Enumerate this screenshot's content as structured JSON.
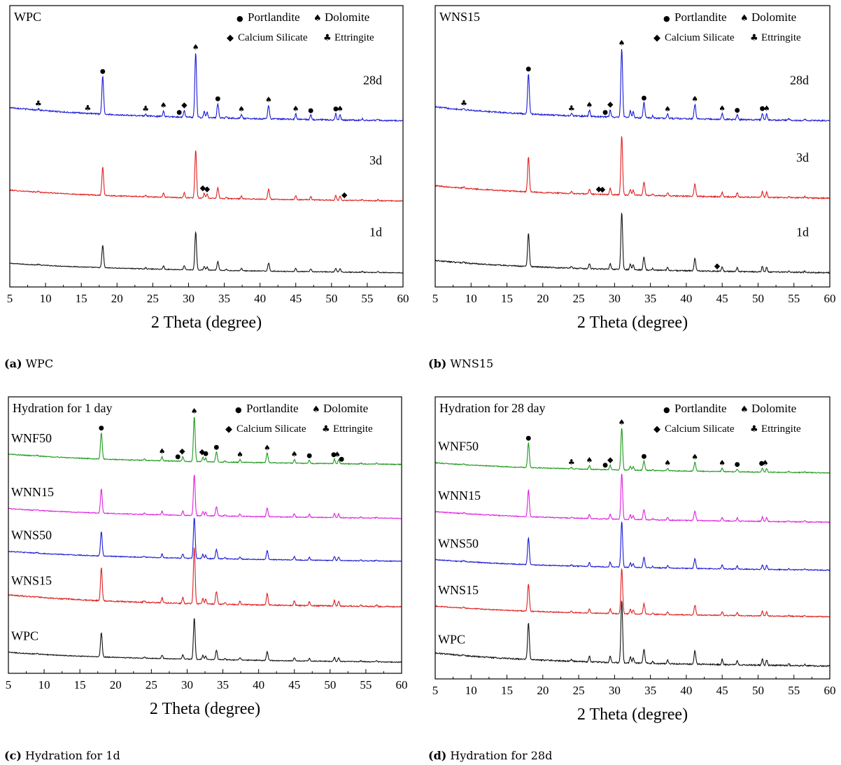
{
  "figure": {
    "colors": {
      "black": "#111111",
      "red": "#e02020",
      "blue": "#1a1ad6",
      "green": "#1e9a1e",
      "magenta": "#e020e0"
    },
    "legend": {
      "portlandite": "Portlandite",
      "dolomite": "Dolomite",
      "calcium_silicate": "Calcium Silicate",
      "ettringite": "Ettringite"
    },
    "symbols": {
      "portlandite": "●",
      "dolomite": "♠",
      "calcium_silicate": "◆",
      "ettringite": "♣"
    },
    "peaks": [
      {
        "two_theta": 18.0,
        "h": 1.0,
        "w": 0.12
      },
      {
        "two_theta": 31.0,
        "h": 1.7,
        "w": 0.12
      },
      {
        "two_theta": 34.1,
        "h": 0.38,
        "w": 0.12
      },
      {
        "two_theta": 41.2,
        "h": 0.36,
        "w": 0.12
      },
      {
        "two_theta": 26.5,
        "h": 0.15,
        "w": 0.1
      },
      {
        "two_theta": 29.4,
        "h": 0.18,
        "w": 0.1
      },
      {
        "two_theta": 32.2,
        "h": 0.17,
        "w": 0.1
      },
      {
        "two_theta": 32.6,
        "h": 0.14,
        "w": 0.1
      },
      {
        "two_theta": 37.4,
        "h": 0.1,
        "w": 0.1
      },
      {
        "two_theta": 45.0,
        "h": 0.14,
        "w": 0.1
      },
      {
        "two_theta": 47.1,
        "h": 0.12,
        "w": 0.1
      },
      {
        "two_theta": 50.6,
        "h": 0.17,
        "w": 0.1
      },
      {
        "two_theta": 51.2,
        "h": 0.15,
        "w": 0.1
      },
      {
        "two_theta": 35.3,
        "h": 0.05,
        "w": 0.1
      },
      {
        "two_theta": 24.0,
        "h": 0.05,
        "w": 0.1
      },
      {
        "two_theta": 9.0,
        "h": 0.03,
        "w": 0.12
      },
      {
        "two_theta": 54.3,
        "h": 0.04,
        "w": 0.1
      },
      {
        "two_theta": 56.5,
        "h": 0.04,
        "w": 0.1
      }
    ]
  },
  "chart_data": [
    {
      "id": "a",
      "type": "line",
      "title": "WPC",
      "caption_letter": "(a)",
      "caption_text": "WPC",
      "xlabel": "2 Theta (degree)",
      "ylabel": "",
      "xlim": [
        5,
        60
      ],
      "xticks": [
        5,
        10,
        15,
        20,
        25,
        30,
        35,
        40,
        45,
        50,
        55,
        60
      ],
      "series": [
        {
          "name": "1d",
          "label": "1d",
          "color": "#111111",
          "baseline": 0.5,
          "scale": 1.0
        },
        {
          "name": "3d",
          "label": "3d",
          "color": "#e02020",
          "baseline": 3.05,
          "scale": 1.26
        },
        {
          "name": "28d",
          "label": "28d",
          "color": "#1a1ad6",
          "baseline": 5.9,
          "scale": 1.7
        }
      ],
      "markers": [
        {
          "type": "ettringite",
          "x": 9.0,
          "series": "28d"
        },
        {
          "type": "ettringite",
          "x": 15.9,
          "series": "28d"
        },
        {
          "type": "portlandite",
          "x": 18.0,
          "series": "28d"
        },
        {
          "type": "ettringite",
          "x": 24.0,
          "series": "28d"
        },
        {
          "type": "dolomite",
          "x": 26.5,
          "series": "28d"
        },
        {
          "type": "portlandite",
          "x": 28.7,
          "series": "28d"
        },
        {
          "type": "calcium_silicate",
          "x": 29.4,
          "series": "28d"
        },
        {
          "type": "dolomite",
          "x": 31.0,
          "series": "28d"
        },
        {
          "type": "portlandite",
          "x": 34.1,
          "series": "28d"
        },
        {
          "type": "dolomite",
          "x": 37.4,
          "series": "28d"
        },
        {
          "type": "dolomite",
          "x": 41.2,
          "series": "28d"
        },
        {
          "type": "dolomite",
          "x": 45.0,
          "series": "28d"
        },
        {
          "type": "portlandite",
          "x": 47.1,
          "series": "28d"
        },
        {
          "type": "portlandite",
          "x": 50.6,
          "series": "28d"
        },
        {
          "type": "dolomite",
          "x": 51.2,
          "series": "28d"
        },
        {
          "type": "calcium_silicate",
          "x": 32.0,
          "series": "3d"
        },
        {
          "type": "calcium_silicate",
          "x": 32.6,
          "series": "3d"
        },
        {
          "type": "calcium_silicate",
          "x": 51.8,
          "series": "3d"
        }
      ]
    },
    {
      "id": "b",
      "type": "line",
      "title": "WNS15",
      "caption_letter": "(b)",
      "caption_text": "WNS15",
      "xlabel": "2 Theta (degree)",
      "ylabel": "",
      "xlim": [
        5,
        60
      ],
      "xticks": [
        5,
        10,
        15,
        20,
        25,
        30,
        35,
        40,
        45,
        50,
        55,
        60
      ],
      "series": [
        {
          "name": "1d",
          "label": "1d",
          "color": "#111111",
          "baseline": 0.5,
          "scale": 1.5
        },
        {
          "name": "3d",
          "label": "3d",
          "color": "#e02020",
          "baseline": 3.15,
          "scale": 1.55
        },
        {
          "name": "28d",
          "label": "28d",
          "color": "#1a1ad6",
          "baseline": 5.9,
          "scale": 1.8
        }
      ],
      "markers": [
        {
          "type": "ettringite",
          "x": 9.0,
          "series": "28d"
        },
        {
          "type": "portlandite",
          "x": 18.0,
          "series": "28d"
        },
        {
          "type": "ettringite",
          "x": 24.0,
          "series": "28d"
        },
        {
          "type": "dolomite",
          "x": 26.5,
          "series": "28d"
        },
        {
          "type": "portlandite",
          "x": 28.7,
          "series": "28d"
        },
        {
          "type": "calcium_silicate",
          "x": 29.4,
          "series": "28d"
        },
        {
          "type": "dolomite",
          "x": 31.0,
          "series": "28d"
        },
        {
          "type": "portlandite",
          "x": 34.1,
          "series": "28d"
        },
        {
          "type": "dolomite",
          "x": 37.4,
          "series": "28d"
        },
        {
          "type": "dolomite",
          "x": 41.2,
          "series": "28d"
        },
        {
          "type": "dolomite",
          "x": 45.0,
          "series": "28d"
        },
        {
          "type": "portlandite",
          "x": 47.1,
          "series": "28d"
        },
        {
          "type": "portlandite",
          "x": 50.6,
          "series": "28d"
        },
        {
          "type": "dolomite",
          "x": 51.2,
          "series": "28d"
        },
        {
          "type": "calcium_silicate",
          "x": 27.8,
          "series": "3d"
        },
        {
          "type": "calcium_silicate",
          "x": 28.3,
          "series": "3d"
        },
        {
          "type": "calcium_silicate",
          "x": 44.3,
          "series": "1d"
        }
      ]
    },
    {
      "id": "c",
      "type": "line",
      "title": "Hydration for 1 day",
      "caption_letter": "(c)",
      "caption_text": "Hydration for 1d",
      "xlabel": "2 Theta (degree)",
      "ylabel": "",
      "xlim": [
        5,
        60
      ],
      "xticks": [
        5,
        10,
        15,
        20,
        25,
        30,
        35,
        40,
        45,
        50,
        55,
        60
      ],
      "series": [
        {
          "name": "WPC",
          "label": "WPC",
          "color": "#111111",
          "baseline": 0.4,
          "scale": 1.1
        },
        {
          "name": "WNS15",
          "label": "WNS15",
          "color": "#e02020",
          "baseline": 2.4,
          "scale": 1.5
        },
        {
          "name": "WNS50",
          "label": "WNS50",
          "color": "#1a1ad6",
          "baseline": 4.05,
          "scale": 1.1
        },
        {
          "name": "WNN15",
          "label": "WNN15",
          "color": "#e020e0",
          "baseline": 5.6,
          "scale": 1.1
        },
        {
          "name": "WNF50",
          "label": "WNF50",
          "color": "#1e9a1e",
          "baseline": 7.55,
          "scale": 1.2
        }
      ],
      "markers": [
        {
          "type": "portlandite",
          "x": 18.0,
          "series": "WNF50"
        },
        {
          "type": "dolomite",
          "x": 26.5,
          "series": "WNF50"
        },
        {
          "type": "portlandite",
          "x": 28.7,
          "series": "WNF50"
        },
        {
          "type": "calcium_silicate",
          "x": 29.3,
          "series": "WNF50"
        },
        {
          "type": "dolomite",
          "x": 31.0,
          "series": "WNF50"
        },
        {
          "type": "calcium_silicate",
          "x": 32.1,
          "series": "WNF50"
        },
        {
          "type": "portlandite",
          "x": 32.6,
          "series": "WNF50"
        },
        {
          "type": "portlandite",
          "x": 34.1,
          "series": "WNF50"
        },
        {
          "type": "dolomite",
          "x": 37.4,
          "series": "WNF50"
        },
        {
          "type": "dolomite",
          "x": 41.2,
          "series": "WNF50"
        },
        {
          "type": "dolomite",
          "x": 45.0,
          "series": "WNF50"
        },
        {
          "type": "portlandite",
          "x": 47.1,
          "series": "WNF50"
        },
        {
          "type": "portlandite",
          "x": 50.5,
          "series": "WNF50"
        },
        {
          "type": "dolomite",
          "x": 51.0,
          "series": "WNF50"
        },
        {
          "type": "portlandite",
          "x": 51.6,
          "series": "WNF50"
        }
      ]
    },
    {
      "id": "d",
      "type": "line",
      "title": "Hydration for 28 day",
      "caption_letter": "(d)",
      "caption_text": "Hydration for 28d",
      "xlabel": "2 Theta (degree)",
      "ylabel": "",
      "xlim": [
        5,
        60
      ],
      "xticks": [
        5,
        10,
        15,
        20,
        25,
        30,
        35,
        40,
        45,
        50,
        55,
        60
      ],
      "series": [
        {
          "name": "WPC",
          "label": "WPC",
          "color": "#111111",
          "baseline": 0.45,
          "scale": 1.65
        },
        {
          "name": "WNS15",
          "label": "WNS15",
          "color": "#e02020",
          "baseline": 2.2,
          "scale": 1.2
        },
        {
          "name": "WNS50",
          "label": "WNS50",
          "color": "#1a1ad6",
          "baseline": 3.85,
          "scale": 1.2
        },
        {
          "name": "WNN15",
          "label": "WNN15",
          "color": "#e020e0",
          "baseline": 5.55,
          "scale": 1.2
        },
        {
          "name": "WNF50",
          "label": "WNF50",
          "color": "#1e9a1e",
          "baseline": 7.3,
          "scale": 1.1
        }
      ],
      "markers": [
        {
          "type": "portlandite",
          "x": 18.0,
          "series": "WNF50"
        },
        {
          "type": "ettringite",
          "x": 24.0,
          "series": "WNF50"
        },
        {
          "type": "dolomite",
          "x": 26.5,
          "series": "WNF50"
        },
        {
          "type": "portlandite",
          "x": 28.7,
          "series": "WNF50"
        },
        {
          "type": "calcium_silicate",
          "x": 29.4,
          "series": "WNF50"
        },
        {
          "type": "dolomite",
          "x": 31.0,
          "series": "WNF50"
        },
        {
          "type": "portlandite",
          "x": 34.1,
          "series": "WNF50"
        },
        {
          "type": "dolomite",
          "x": 37.4,
          "series": "WNF50"
        },
        {
          "type": "dolomite",
          "x": 41.2,
          "series": "WNF50"
        },
        {
          "type": "dolomite",
          "x": 45.0,
          "series": "WNF50"
        },
        {
          "type": "portlandite",
          "x": 47.1,
          "series": "WNF50"
        },
        {
          "type": "portlandite",
          "x": 50.5,
          "series": "WNF50"
        },
        {
          "type": "dolomite",
          "x": 51.0,
          "series": "WNF50"
        }
      ]
    }
  ]
}
